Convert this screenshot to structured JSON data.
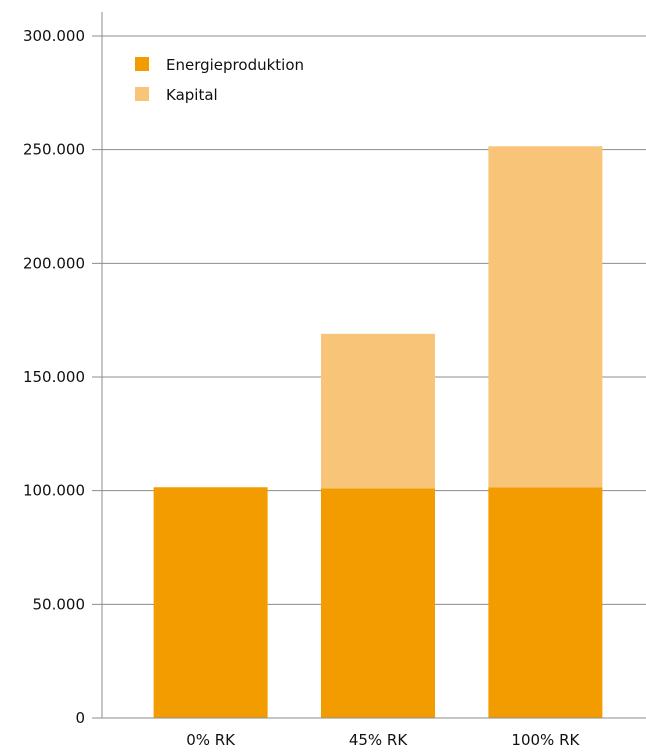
{
  "chart_data": {
    "type": "bar",
    "stacked": true,
    "categories": [
      "0% RK",
      "45% RK",
      "100% RK"
    ],
    "series": [
      {
        "name": "Energieproduktion",
        "color": "#f39c00",
        "values": [
          101500,
          101000,
          101500
        ]
      },
      {
        "name": "Kapital",
        "color": "#f8c478",
        "values": [
          0,
          68000,
          150000
        ]
      }
    ],
    "ylim": [
      0,
      300000
    ],
    "yticks": [
      0,
      50000,
      100000,
      150000,
      200000,
      250000,
      300000
    ],
    "ytick_labels": [
      "0",
      "50.000",
      "100.000",
      "150.000",
      "200.000",
      "250.000",
      "300.000"
    ],
    "grid": true,
    "legend_position": "top-left"
  }
}
